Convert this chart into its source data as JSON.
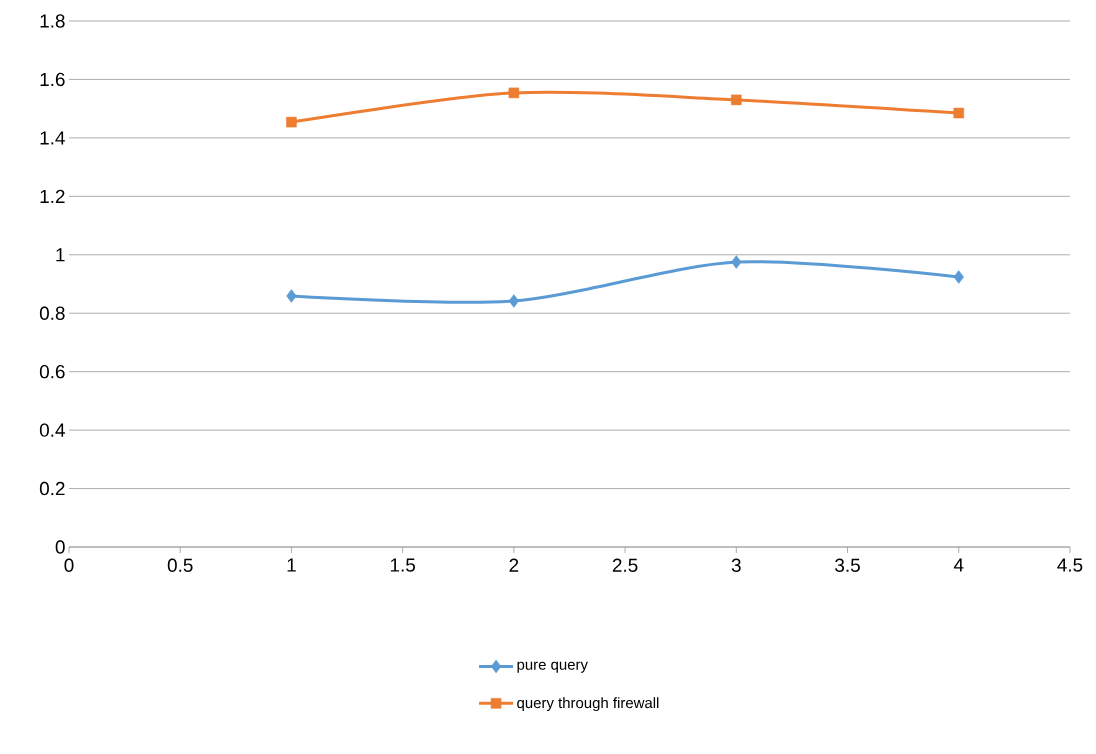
{
  "chart_data": {
    "type": "line",
    "xlim": [
      0,
      4.5
    ],
    "ylim": [
      0,
      1.8
    ],
    "xticks": [
      0,
      0.5,
      1,
      1.5,
      2,
      2.5,
      3,
      3.5,
      4,
      4.5
    ],
    "yticks": [
      0,
      0.2,
      0.4,
      0.6,
      0.8,
      1,
      1.2,
      1.4,
      1.6,
      1.8
    ],
    "x": [
      1,
      2,
      3,
      4
    ],
    "grid": "y",
    "legend": "bottom",
    "series": [
      {
        "name": "pure query",
        "color": "#5b9bd5",
        "marker": "diamond",
        "values": [
          0.859,
          0.842,
          0.975,
          0.924
        ]
      },
      {
        "name": "query through firewall",
        "color": "#ed7d31",
        "marker": "square",
        "values": [
          1.454,
          1.554,
          1.53,
          1.485
        ]
      }
    ]
  }
}
